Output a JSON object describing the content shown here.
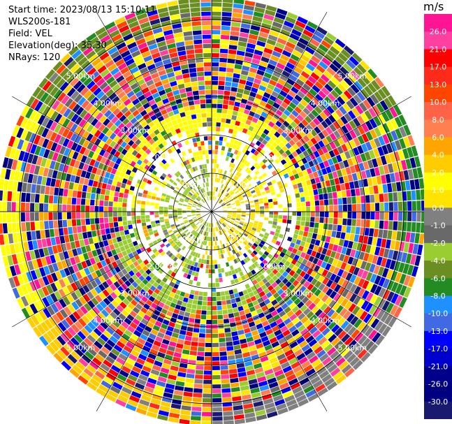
{
  "info": {
    "start_time": "Start time: 2023/08/13 15:10:11",
    "device": "WLS200s-181",
    "field": "Field: VEL",
    "elevation": "Elevation(deg): 35.30",
    "nrays": "NRays: 120"
  },
  "colorbar": {
    "unit": "m/s",
    "ticks": [
      "26.0",
      "21.0",
      "17.0",
      "13.0",
      "10.0",
      "8.0",
      "6.0",
      "4.0",
      "2.0",
      "1.0",
      "0.0",
      "-1.0",
      "-2.0",
      "-4.0",
      "-6.0",
      "-8.0",
      "-10.0",
      "-13.0",
      "-17.0",
      "-21.0",
      "-26.0",
      "-30.0"
    ],
    "colors": [
      "#ff1493",
      "#ff40a0",
      "#ff0000",
      "#ff2a1a",
      "#ff4500",
      "#ff6347",
      "#ff7f50",
      "#ffa500",
      "#ffcc00",
      "#ffff00",
      "#ffe400",
      "#808080",
      "#696969",
      "#9acd32",
      "#6b8e23",
      "#228b22",
      "#1e90ff",
      "#4169e1",
      "#0000ff",
      "#0000cd",
      "#00008b",
      "#000080",
      "#191970"
    ]
  },
  "rings": {
    "labels": [
      "1.00km",
      "2.00km",
      "3.00km",
      "4.00km",
      "5.00km"
    ]
  },
  "chart_data": {
    "type": "heatmap",
    "nrays": 120,
    "max_range_km": 5.5,
    "ring_km": [
      1,
      2,
      3,
      4,
      5
    ]
  }
}
